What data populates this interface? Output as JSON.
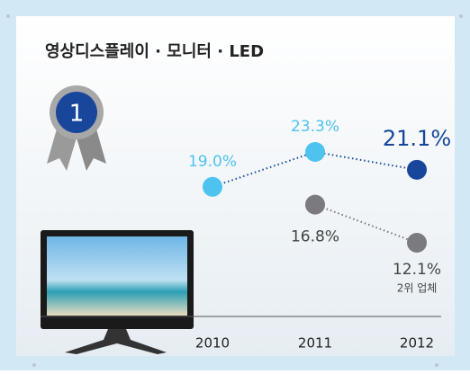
{
  "chart_data": {
    "type": "line",
    "title": "영상디스플레이 · 모니터 · LED",
    "badge": "1",
    "x": [
      "2010",
      "2011",
      "2012"
    ],
    "series": [
      {
        "name": null,
        "color": "#4fc3f0",
        "last_point_color": "#17469b",
        "values": [
          19.0,
          23.3,
          21.1
        ],
        "value_labels": [
          "19.0%",
          "23.3%",
          "21.1%"
        ]
      },
      {
        "name": null,
        "color": "#7b7b7f",
        "values": [
          null,
          16.8,
          12.1
        ],
        "value_labels": [
          null,
          "16.8%",
          "12.1%"
        ],
        "annotation": "2위 업체"
      }
    ]
  }
}
